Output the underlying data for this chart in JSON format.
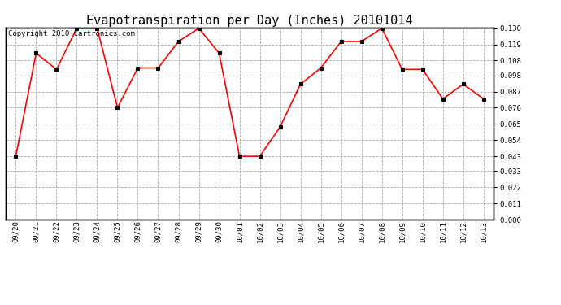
{
  "title": "Evapotranspiration per Day (Inches) 20101014",
  "copyright_text": "Copyright 2010 Cartronics.com",
  "x_labels": [
    "09/20",
    "09/21",
    "09/22",
    "09/23",
    "09/24",
    "09/25",
    "09/26",
    "09/27",
    "09/28",
    "09/29",
    "09/30",
    "10/01",
    "10/02",
    "10/03",
    "10/04",
    "10/05",
    "10/06",
    "10/07",
    "10/08",
    "10/09",
    "10/10",
    "10/11",
    "10/12",
    "10/13"
  ],
  "y_values": [
    0.043,
    0.113,
    0.102,
    0.13,
    0.13,
    0.076,
    0.103,
    0.103,
    0.121,
    0.13,
    0.113,
    0.043,
    0.043,
    0.063,
    0.092,
    0.103,
    0.121,
    0.121,
    0.13,
    0.102,
    0.102,
    0.082,
    0.092,
    0.082
  ],
  "y_ticks": [
    0.0,
    0.011,
    0.022,
    0.033,
    0.043,
    0.054,
    0.065,
    0.076,
    0.087,
    0.098,
    0.108,
    0.119,
    0.13
  ],
  "line_color": "red",
  "marker": "s",
  "marker_color": "black",
  "marker_size": 3,
  "background_color": "#ffffff",
  "grid_color": "#aaaaaa",
  "title_fontsize": 11,
  "copyright_fontsize": 6.5,
  "ylim": [
    0.0,
    0.13
  ],
  "border_color": "black"
}
